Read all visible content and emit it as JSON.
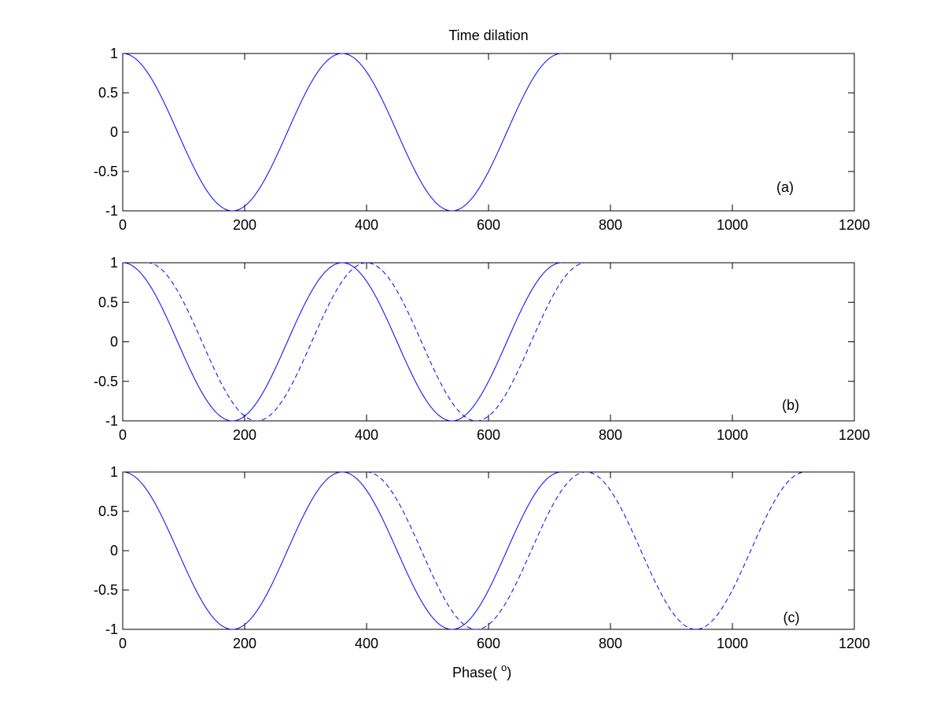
{
  "chart_data": [
    {
      "type": "line",
      "title": "Time dilation",
      "xlabel": "",
      "ylabel": "",
      "xlim": [
        0,
        1200
      ],
      "ylim": [
        -1,
        1
      ],
      "xticks": [
        0,
        200,
        400,
        600,
        800,
        1000,
        1200
      ],
      "yticks": [
        -1,
        -0.5,
        0,
        0.5,
        1
      ],
      "xtick_labels": [
        "0",
        "200",
        "400",
        "600",
        "800",
        "1000",
        "1200"
      ],
      "ytick_labels": [
        "-1",
        "-0.5",
        "0",
        "0.5",
        "1"
      ],
      "annotation": "(a)",
      "grid": false,
      "series": [
        {
          "style": "solid",
          "function": "cos(phase)",
          "x_range": [
            0,
            720
          ],
          "phase_shift": 0
        }
      ]
    },
    {
      "type": "line",
      "title": "",
      "xlabel": "",
      "ylabel": "",
      "xlim": [
        0,
        1200
      ],
      "ylim": [
        -1,
        1
      ],
      "xticks": [
        0,
        200,
        400,
        600,
        800,
        1000,
        1200
      ],
      "yticks": [
        -1,
        -0.5,
        0,
        0.5,
        1
      ],
      "xtick_labels": [
        "0",
        "200",
        "400",
        "600",
        "800",
        "1000",
        "1200"
      ],
      "ytick_labels": [
        "-1",
        "-0.5",
        "0",
        "0.5",
        "1"
      ],
      "annotation": "(b)",
      "grid": false,
      "series": [
        {
          "style": "solid",
          "function": "cos(phase)",
          "x_range": [
            0,
            720
          ],
          "phase_shift": 0
        },
        {
          "style": "dashed",
          "function": "cos(phase - 40)",
          "x_range": [
            40,
            760
          ],
          "phase_shift": 40
        }
      ]
    },
    {
      "type": "line",
      "title": "",
      "xlabel": "Phase( °)",
      "ylabel": "",
      "xlim": [
        0,
        1200
      ],
      "ylim": [
        -1,
        1
      ],
      "xticks": [
        0,
        200,
        400,
        600,
        800,
        1000,
        1200
      ],
      "yticks": [
        -1,
        -0.5,
        0,
        0.5,
        1
      ],
      "xtick_labels": [
        "0",
        "200",
        "400",
        "600",
        "800",
        "1000",
        "1200"
      ],
      "ytick_labels": [
        "-1",
        "-0.5",
        "0",
        "0.5",
        "1"
      ],
      "annotation": "(c)",
      "grid": false,
      "series": [
        {
          "style": "solid",
          "function": "cos(phase)",
          "x_range": [
            0,
            720
          ],
          "phase_shift": 0
        },
        {
          "style": "dashed",
          "function": "cos(phase - 40)",
          "x_range": [
            400,
            1120
          ],
          "phase_shift": 40
        }
      ]
    }
  ],
  "colors": {
    "line": "#0000ff",
    "axes": "#000000",
    "background": "#ffffff"
  },
  "xlabel_main": "Phase(",
  "xlabel_degree": "o",
  "xlabel_close": ")"
}
